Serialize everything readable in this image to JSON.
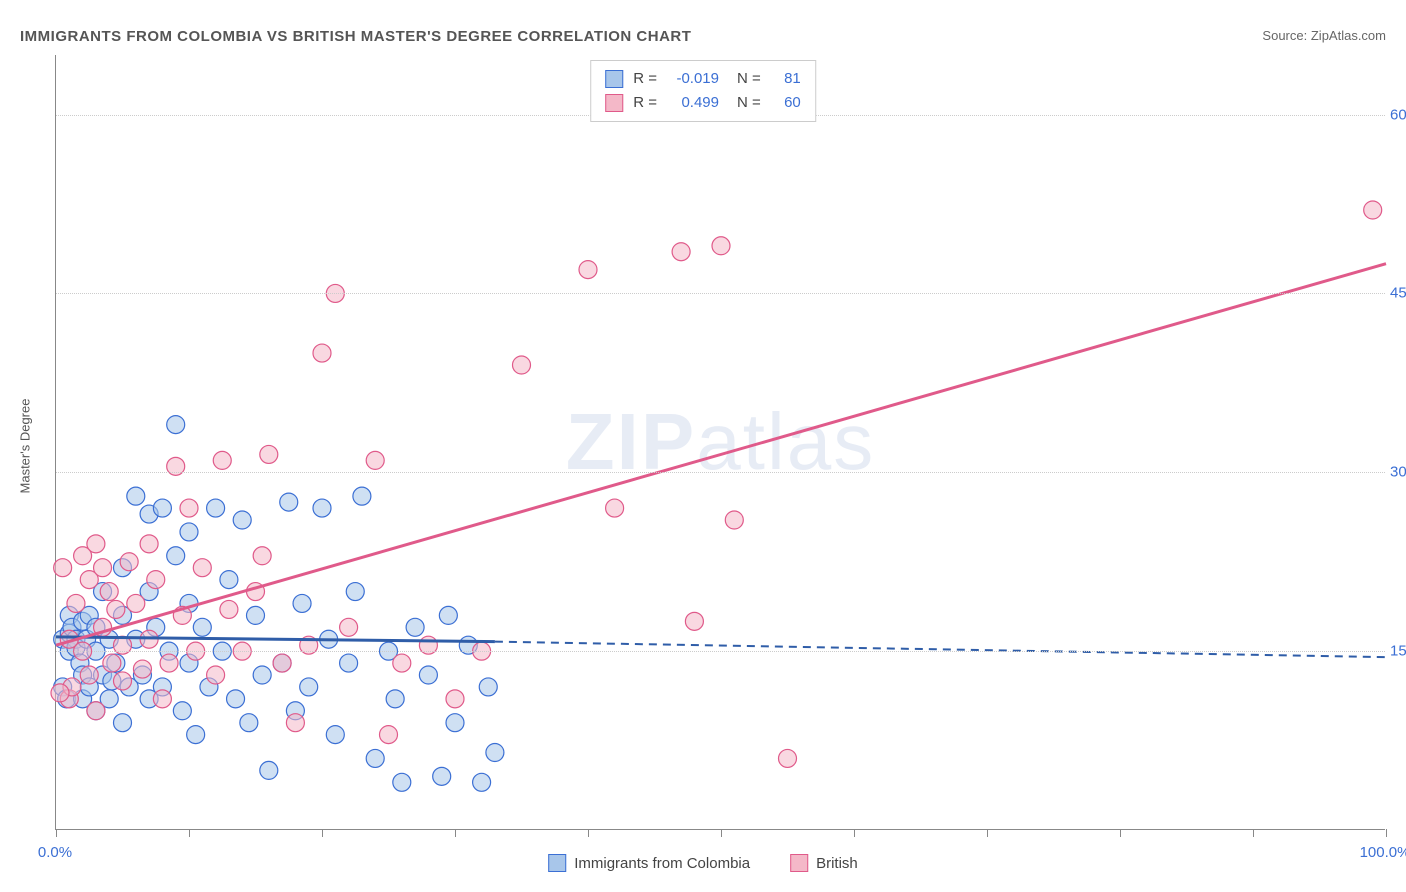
{
  "title": "IMMIGRANTS FROM COLOMBIA VS BRITISH MASTER'S DEGREE CORRELATION CHART",
  "source_label": "Source:",
  "source_name": "ZipAtlas.com",
  "y_axis_title": "Master's Degree",
  "watermark_bold": "ZIP",
  "watermark_rest": "atlas",
  "chart": {
    "type": "scatter",
    "xlim": [
      0,
      100
    ],
    "ylim": [
      0,
      65
    ],
    "x_tick_step": 10,
    "x_tick_labels": {
      "0": "0.0%",
      "100": "100.0%"
    },
    "y_ticks": [
      15,
      30,
      45,
      60
    ],
    "y_tick_labels": [
      "15.0%",
      "30.0%",
      "45.0%",
      "60.0%"
    ],
    "background_color": "#ffffff",
    "grid_color": "#cccccc",
    "axis_color": "#888888",
    "tick_label_color": "#3b6fd4",
    "marker_radius": 9,
    "marker_opacity": 0.55,
    "series": [
      {
        "name": "Immigrants from Colombia",
        "color_fill": "#a8c6ea",
        "color_stroke": "#3b6fd4",
        "R": "-0.019",
        "N": "81",
        "trend": {
          "x1": 0,
          "y1": 16.2,
          "x2_solid": 33,
          "y2_solid": 15.8,
          "x2": 100,
          "y2": 14.5,
          "color": "#2f5da8",
          "width": 3,
          "dash": "8,6"
        },
        "points": [
          [
            0.5,
            12
          ],
          [
            0.5,
            16
          ],
          [
            0.8,
            11
          ],
          [
            1,
            18
          ],
          [
            1,
            16.5
          ],
          [
            1,
            15
          ],
          [
            1.2,
            17
          ],
          [
            1.5,
            16
          ],
          [
            1.5,
            15.3
          ],
          [
            1.8,
            14
          ],
          [
            2,
            13
          ],
          [
            2,
            17.5
          ],
          [
            2,
            11
          ],
          [
            2.3,
            16
          ],
          [
            2.5,
            12
          ],
          [
            2.5,
            18
          ],
          [
            3,
            10
          ],
          [
            3,
            17
          ],
          [
            3,
            15
          ],
          [
            3.5,
            13
          ],
          [
            3.5,
            20
          ],
          [
            4,
            11
          ],
          [
            4,
            16
          ],
          [
            4.2,
            12.5
          ],
          [
            4.5,
            14
          ],
          [
            5,
            9
          ],
          [
            5,
            18
          ],
          [
            5,
            22
          ],
          [
            5.5,
            12
          ],
          [
            6,
            16
          ],
          [
            6,
            28
          ],
          [
            6.5,
            13
          ],
          [
            7,
            11
          ],
          [
            7,
            20
          ],
          [
            7,
            26.5
          ],
          [
            7.5,
            17
          ],
          [
            8,
            27
          ],
          [
            8,
            12
          ],
          [
            8.5,
            15
          ],
          [
            9,
            34
          ],
          [
            9,
            23
          ],
          [
            9.5,
            10
          ],
          [
            10,
            14
          ],
          [
            10,
            19
          ],
          [
            10,
            25
          ],
          [
            10.5,
            8
          ],
          [
            11,
            17
          ],
          [
            11.5,
            12
          ],
          [
            12,
            27
          ],
          [
            12.5,
            15
          ],
          [
            13,
            21
          ],
          [
            13.5,
            11
          ],
          [
            14,
            26
          ],
          [
            14.5,
            9
          ],
          [
            15,
            18
          ],
          [
            15.5,
            13
          ],
          [
            16,
            5
          ],
          [
            17,
            14
          ],
          [
            17.5,
            27.5
          ],
          [
            18,
            10
          ],
          [
            18.5,
            19
          ],
          [
            19,
            12
          ],
          [
            20,
            27
          ],
          [
            20.5,
            16
          ],
          [
            21,
            8
          ],
          [
            22,
            14
          ],
          [
            22.5,
            20
          ],
          [
            23,
            28
          ],
          [
            24,
            6
          ],
          [
            25,
            15
          ],
          [
            25.5,
            11
          ],
          [
            26,
            4
          ],
          [
            27,
            17
          ],
          [
            28,
            13
          ],
          [
            29,
            4.5
          ],
          [
            29.5,
            18
          ],
          [
            30,
            9
          ],
          [
            31,
            15.5
          ],
          [
            32,
            4
          ],
          [
            32.5,
            12
          ],
          [
            33,
            6.5
          ]
        ]
      },
      {
        "name": "British",
        "color_fill": "#f4b8c8",
        "color_stroke": "#e05a8a",
        "R": "0.499",
        "N": "60",
        "trend": {
          "x1": 0,
          "y1": 15.5,
          "x2_solid": 100,
          "y2_solid": 47.5,
          "x2": 100,
          "y2": 47.5,
          "color": "#e05a8a",
          "width": 3,
          "dash": null
        },
        "points": [
          [
            0.5,
            22
          ],
          [
            1,
            11
          ],
          [
            1,
            16
          ],
          [
            1.2,
            12
          ],
          [
            1.5,
            19
          ],
          [
            2,
            23
          ],
          [
            2,
            15
          ],
          [
            2.5,
            13
          ],
          [
            2.5,
            21
          ],
          [
            3,
            24
          ],
          [
            3,
            10
          ],
          [
            3.5,
            17
          ],
          [
            3.5,
            22
          ],
          [
            4,
            20
          ],
          [
            4.2,
            14
          ],
          [
            4.5,
            18.5
          ],
          [
            5,
            15.5
          ],
          [
            5,
            12.5
          ],
          [
            5.5,
            22.5
          ],
          [
            6,
            19
          ],
          [
            6.5,
            13.5
          ],
          [
            7,
            24
          ],
          [
            7,
            16
          ],
          [
            7.5,
            21
          ],
          [
            8,
            11
          ],
          [
            8.5,
            14
          ],
          [
            9,
            30.5
          ],
          [
            9.5,
            18
          ],
          [
            10,
            27
          ],
          [
            10.5,
            15
          ],
          [
            11,
            22
          ],
          [
            12,
            13
          ],
          [
            12.5,
            31
          ],
          [
            13,
            18.5
          ],
          [
            14,
            15
          ],
          [
            15,
            20
          ],
          [
            15.5,
            23
          ],
          [
            16,
            31.5
          ],
          [
            17,
            14
          ],
          [
            18,
            9
          ],
          [
            19,
            15.5
          ],
          [
            20,
            40
          ],
          [
            21,
            45
          ],
          [
            22,
            17
          ],
          [
            24,
            31
          ],
          [
            25,
            8
          ],
          [
            26,
            14
          ],
          [
            28,
            15.5
          ],
          [
            30,
            11
          ],
          [
            32,
            15
          ],
          [
            35,
            39
          ],
          [
            40,
            47
          ],
          [
            42,
            27
          ],
          [
            47,
            48.5
          ],
          [
            48,
            17.5
          ],
          [
            50,
            49
          ],
          [
            51,
            26
          ],
          [
            55,
            6
          ],
          [
            99,
            52
          ],
          [
            0.3,
            11.5
          ]
        ]
      }
    ]
  },
  "legend_top": {
    "R_label": "R =",
    "N_label": "N ="
  },
  "legend_bottom": {
    "items": [
      "Immigrants from Colombia",
      "British"
    ]
  }
}
